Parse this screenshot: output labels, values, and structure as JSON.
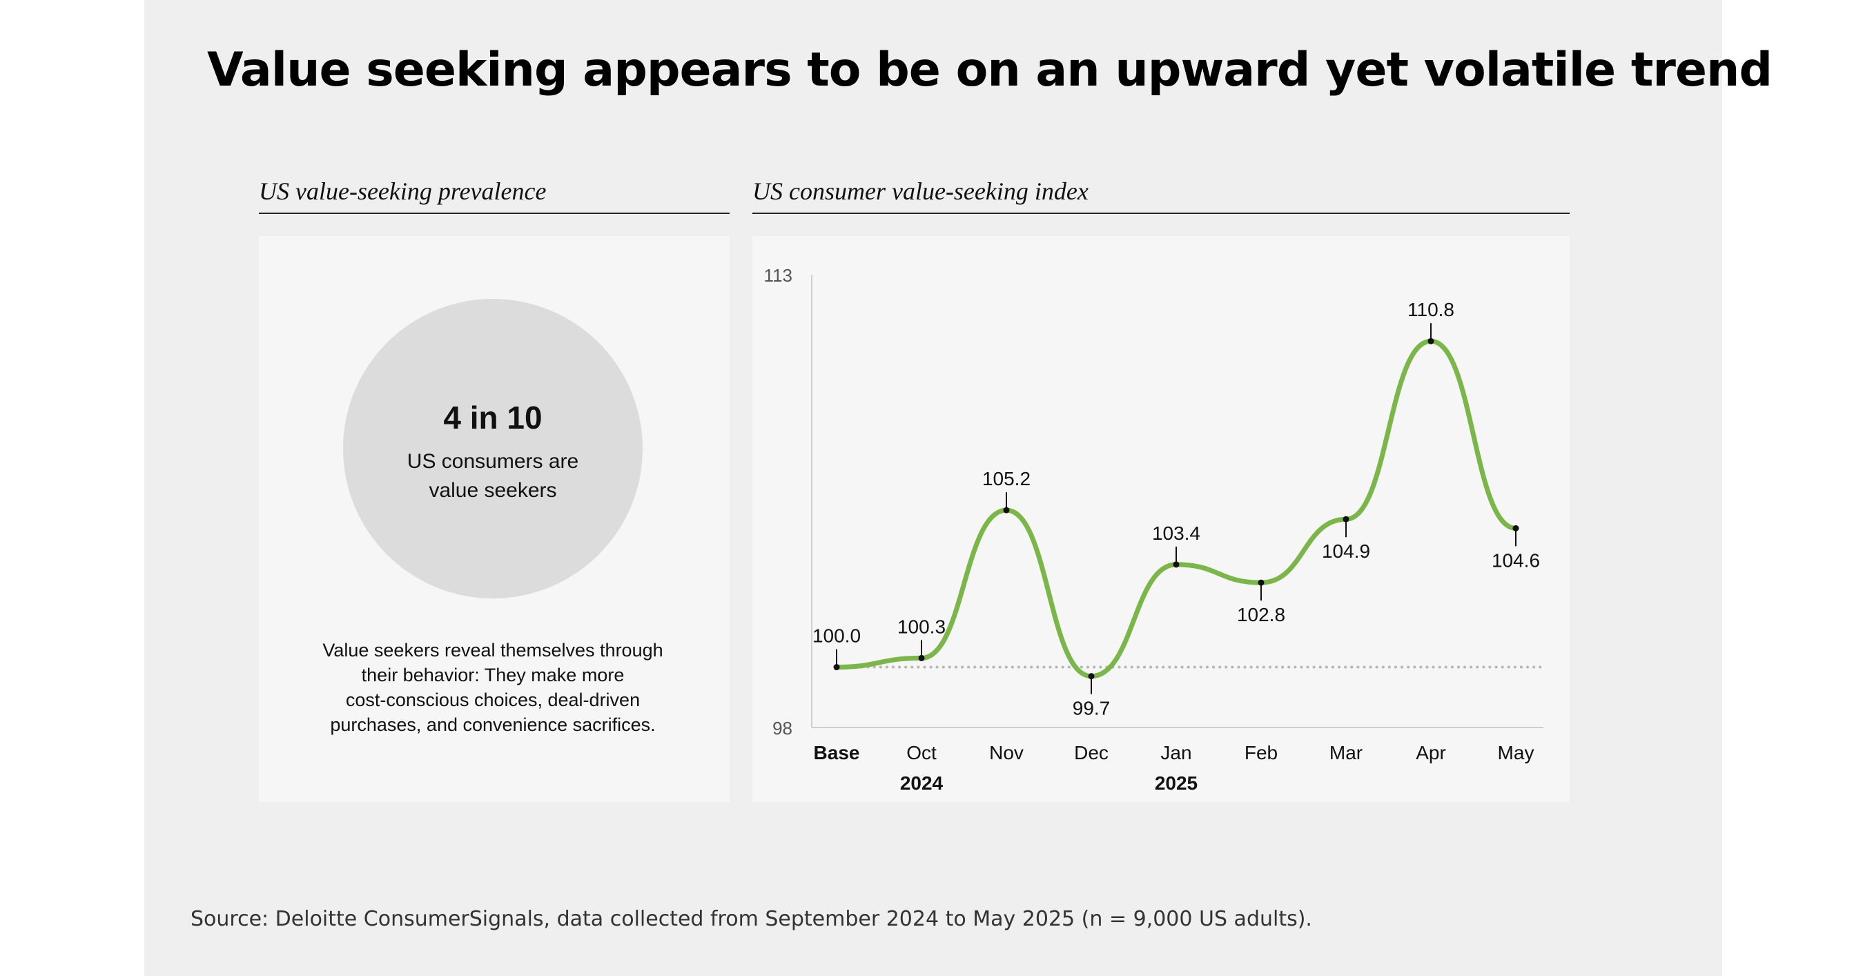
{
  "title": "Value seeking appears to be on an upward yet volatile trend",
  "left_panel": {
    "heading": "US value-seeking prevalence",
    "stat": "4 in 10",
    "stat_lines": [
      "US consumers are",
      "value seekers"
    ],
    "description_lines": [
      "Value seekers reveal themselves through",
      "their behavior: They make more",
      "cost-conscious choices, deal-driven",
      "purchases, and convenience sacrifices."
    ]
  },
  "right_panel": {
    "heading": "US consumer value-seeking index"
  },
  "source": "Source: Deloitte ConsumerSignals, data collected from September 2024 to May 2025 (n = 9,000 US adults).",
  "colors": {
    "line": "#7ab648",
    "baseline_dots": "#b5b5b5",
    "circle": "#dcdcdc"
  },
  "chart_data": {
    "type": "line",
    "title": "US consumer value-seeking index",
    "categories": [
      "Base",
      "Oct",
      "Nov",
      "Dec",
      "Jan",
      "Feb",
      "Mar",
      "Apr",
      "May"
    ],
    "values": [
      100.0,
      100.3,
      105.2,
      99.7,
      103.4,
      102.8,
      104.9,
      110.8,
      104.6
    ],
    "value_labels": [
      "100.0",
      "100.3",
      "105.2",
      "99.7",
      "103.4",
      "102.8",
      "104.9",
      "110.8",
      "104.6"
    ],
    "label_position": [
      "above",
      "above",
      "above",
      "below",
      "above",
      "below",
      "below",
      "above",
      "below"
    ],
    "bold_categories": [
      "Base"
    ],
    "year_labels": [
      {
        "label": "2024",
        "category": "Oct"
      },
      {
        "label": "2025",
        "category": "Jan"
      }
    ],
    "baseline": 100,
    "ylim": [
      98,
      113
    ],
    "yticks": [
      "113",
      "98"
    ],
    "grid": false
  }
}
